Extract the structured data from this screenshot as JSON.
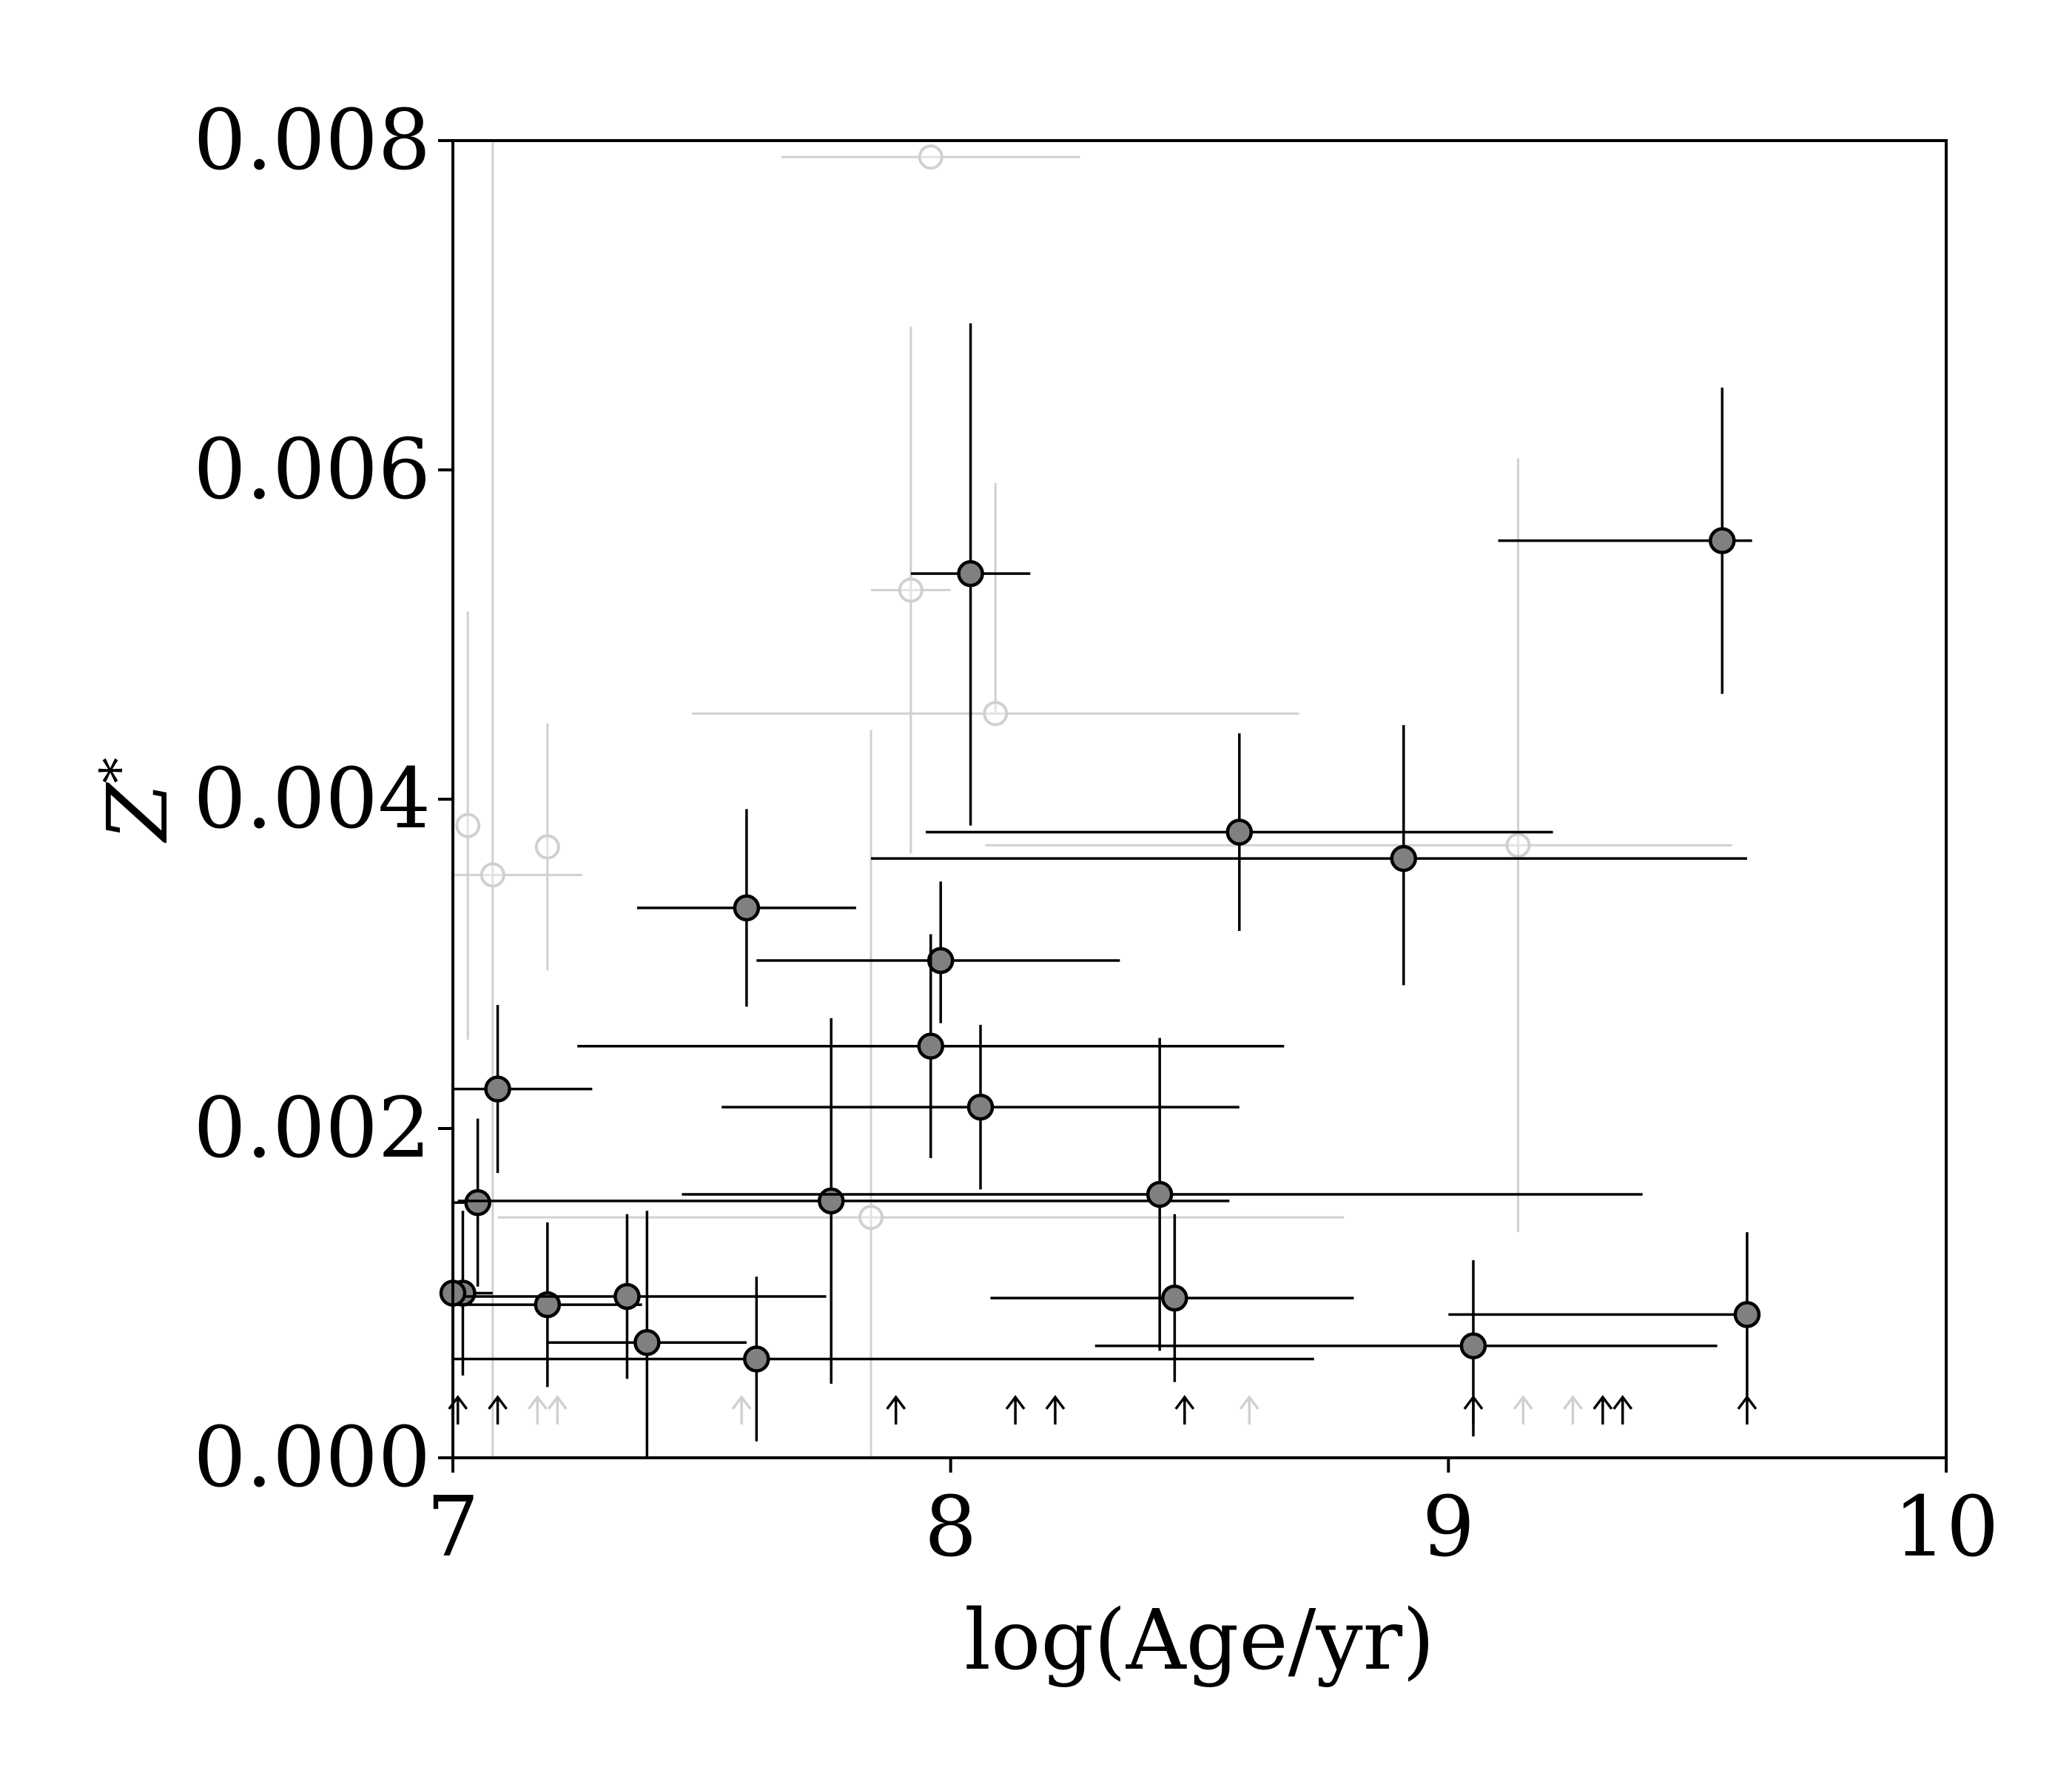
{
  "chart_data": {
    "type": "scatter",
    "title": "",
    "xlabel": "log(Age/yr)",
    "ylabel": "Z",
    "ylabel_subscript": "*",
    "xlim": [
      7,
      10
    ],
    "ylim": [
      0,
      0.008
    ],
    "x_ticks": [
      7,
      8,
      9,
      10
    ],
    "x_tick_labels": [
      "7",
      "8",
      "9",
      "10"
    ],
    "y_ticks": [
      0,
      0.002,
      0.004,
      0.006,
      0.008
    ],
    "y_tick_labels": [
      "0.000",
      "0.002",
      "0.004",
      "0.006",
      "0.008"
    ],
    "grid": false,
    "colors": {
      "detected_fill": "#808080",
      "detected_edge": "#000000",
      "faded": "#d0d0d0"
    },
    "series": [
      {
        "style": "detected",
        "points": [
          {
            "x": 9.55,
            "y": 0.00557,
            "xerr": [
              0.45,
              0.06
            ],
            "yerr": [
              0.00093,
              0.00093
            ]
          },
          {
            "x": 8.04,
            "y": 0.00537,
            "xerr": [
              0.12,
              0.12
            ],
            "yerr": [
              0.00153,
              0.00152
            ]
          },
          {
            "x": 8.58,
            "y": 0.0038,
            "xerr": [
              0.63,
              0.63
            ],
            "yerr": [
              0.0006,
              0.0006
            ]
          },
          {
            "x": 8.91,
            "y": 0.00364,
            "xerr": [
              1.07,
              0.69
            ],
            "yerr": [
              0.00077,
              0.00081
            ]
          },
          {
            "x": 7.59,
            "y": 0.00334,
            "xerr": [
              0.22,
              0.22
            ],
            "yerr": [
              0.0006,
              0.0006
            ]
          },
          {
            "x": 7.98,
            "y": 0.00302,
            "xerr": [
              0.37,
              0.36
            ],
            "yerr": [
              0.00038,
              0.00048
            ]
          },
          {
            "x": 7.96,
            "y": 0.0025,
            "xerr": [
              0.71,
              0.71
            ],
            "yerr": [
              0.00068,
              0.00068
            ]
          },
          {
            "x": 8.06,
            "y": 0.00213,
            "xerr": [
              0.52,
              0.52
            ],
            "yerr": [
              0.0005,
              0.0005
            ]
          },
          {
            "x": 7.09,
            "y": 0.00224,
            "xerr": [
              0.09,
              0.19
            ],
            "yerr": [
              0.00051,
              0.00051
            ]
          },
          {
            "x": 7.05,
            "y": 0.00155,
            "xerr": [
              0.05,
              0.02
            ],
            "yerr": [
              0.00051,
              0.00051
            ]
          },
          {
            "x": 7.76,
            "y": 0.00156,
            "xerr": [
              0.75,
              0.8
            ],
            "yerr": [
              0.00111,
              0.00111
            ]
          },
          {
            "x": 8.42,
            "y": 0.0016,
            "xerr": [
              0.96,
              0.97
            ],
            "yerr": [
              0.00095,
              0.00095
            ]
          },
          {
            "x": 8.45,
            "y": 0.00097,
            "xerr": [
              0.37,
              0.36
            ],
            "yerr": [
              0.00051,
              0.00051
            ]
          },
          {
            "x": 7.02,
            "y": 0.001,
            "xerr": [
              0.02,
              0.06
            ],
            "yerr": [
              0.0005,
              0.0005
            ]
          },
          {
            "x": 7.19,
            "y": 0.00093,
            "xerr": [
              0.19,
              0.19
            ],
            "yerr": [
              0.0005,
              0.0005
            ]
          },
          {
            "x": 7.35,
            "y": 0.00098,
            "xerr": [
              0.35,
              0.4
            ],
            "yerr": [
              0.0005,
              0.0005
            ]
          },
          {
            "x": 7.39,
            "y": 0.0007,
            "xerr": [
              0.2,
              0.2
            ],
            "yerr": [
              0.0007,
              0.0008
            ]
          },
          {
            "x": 7.61,
            "y": 0.0006,
            "xerr": [
              0.61,
              1.12
            ],
            "yerr": [
              0.0005,
              0.0005
            ]
          },
          {
            "x": 9.05,
            "y": 0.00068,
            "xerr": [
              0.76,
              0.49
            ],
            "yerr": [
              0.00055,
              0.00052
            ]
          },
          {
            "x": 9.6,
            "y": 0.00087,
            "xerr": [
              0.6,
              0.0
            ],
            "yerr": [
              0.0005,
              0.0005
            ]
          },
          {
            "x": 7.0,
            "y": 0.001,
            "xerr": [
              0.0,
              0.0
            ],
            "yerr": [
              0.0,
              0.0
            ]
          }
        ]
      },
      {
        "style": "faded",
        "points": [
          {
            "x": 7.96,
            "y": 0.0079,
            "xerr": [
              0.3,
              0.3
            ],
            "yerr": [
              0.0,
              0.0
            ]
          },
          {
            "x": 7.92,
            "y": 0.00527,
            "xerr": [
              0.08,
              0.08
            ],
            "yerr": [
              0.0016,
              0.0016
            ]
          },
          {
            "x": 8.09,
            "y": 0.00452,
            "xerr": [
              0.61,
              0.61
            ],
            "yerr": [
              0.0,
              0.0014
            ]
          },
          {
            "x": 7.03,
            "y": 0.00384,
            "xerr": [
              0.0,
              0.0
            ],
            "yerr": [
              0.0013,
              0.0013
            ]
          },
          {
            "x": 7.08,
            "y": 0.00354,
            "xerr": [
              0.08,
              0.18
            ],
            "yerr": [
              0.0045,
              0.0045
            ]
          },
          {
            "x": 7.19,
            "y": 0.00371,
            "xerr": [
              0.0,
              0.0
            ],
            "yerr": [
              0.00075,
              0.00075
            ]
          },
          {
            "x": 9.14,
            "y": 0.00372,
            "xerr": [
              1.07,
              0.43
            ],
            "yerr": [
              0.00235,
              0.00235
            ]
          },
          {
            "x": 7.84,
            "y": 0.00146,
            "xerr": [
              0.75,
              0.95
            ],
            "yerr": [
              0.00146,
              0.00296
            ]
          }
        ]
      }
    ],
    "upper_limit_arrows": {
      "dark": [
        7.01,
        7.09,
        7.89,
        8.13,
        8.21,
        8.47,
        9.05,
        9.31,
        9.35,
        9.6
      ],
      "faded": [
        7.17,
        7.21,
        7.58,
        8.6,
        9.15,
        9.25
      ]
    }
  }
}
